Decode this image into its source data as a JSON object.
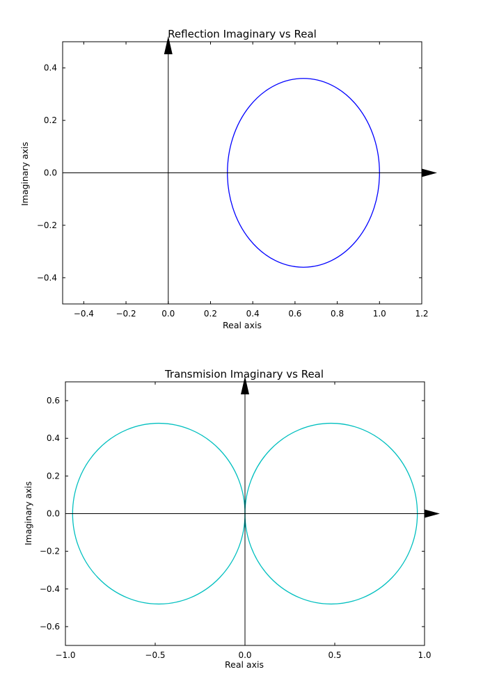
{
  "chart_data": [
    {
      "type": "line",
      "title": "Reflection Imaginary vs Real",
      "xlabel": "Real axis",
      "ylabel": "Imaginary axis",
      "xlim": [
        -0.5,
        1.2
      ],
      "ylim": [
        -0.5,
        0.5
      ],
      "xticks": [
        -0.4,
        -0.2,
        0.0,
        0.2,
        0.4,
        0.6,
        0.8,
        1.0,
        1.2
      ],
      "xtick_labels": [
        "−0.4",
        "−0.2",
        "0.0",
        "0.2",
        "0.4",
        "0.6",
        "0.8",
        "1.0",
        "1.2"
      ],
      "yticks": [
        0.4,
        0.2,
        0.0,
        -0.2,
        -0.4
      ],
      "ytick_labels": [
        "0.4",
        "0.2",
        "0.0",
        "−0.2",
        "−0.4"
      ],
      "grid": false,
      "series": [
        {
          "shape": "ellipse",
          "center": [
            0.64,
            0.0
          ],
          "radius_x": 0.36,
          "radius_y": 0.36,
          "color": "#0000ff"
        }
      ],
      "axis_arrows": {
        "color": "#000000",
        "origin": [
          0.0,
          0.0
        ]
      }
    },
    {
      "type": "line",
      "title": "Transmision Imaginary vs Real",
      "xlabel": "Real axis",
      "ylabel": "Imaginary axis",
      "xlim": [
        -1.0,
        1.0
      ],
      "ylim": [
        -0.7,
        0.7
      ],
      "xticks": [
        -1.0,
        -0.5,
        0.0,
        0.5,
        1.0
      ],
      "xtick_labels": [
        "−1.0",
        "−0.5",
        "0.0",
        "0.5",
        "1.0"
      ],
      "yticks": [
        0.6,
        0.4,
        0.2,
        0.0,
        -0.2,
        -0.4,
        -0.6
      ],
      "ytick_labels": [
        "0.6",
        "0.4",
        "0.2",
        "0.0",
        "−0.2",
        "−0.4",
        "−0.6"
      ],
      "grid": false,
      "series": [
        {
          "shape": "ellipse",
          "center": [
            -0.48,
            0.0
          ],
          "radius_x": 0.48,
          "radius_y": 0.48,
          "color": "#00bfbf"
        },
        {
          "shape": "ellipse",
          "center": [
            0.48,
            0.0
          ],
          "radius_x": 0.48,
          "radius_y": 0.48,
          "color": "#00bfbf"
        }
      ],
      "axis_arrows": {
        "color": "#000000",
        "origin": [
          0.0,
          0.0
        ]
      }
    }
  ]
}
